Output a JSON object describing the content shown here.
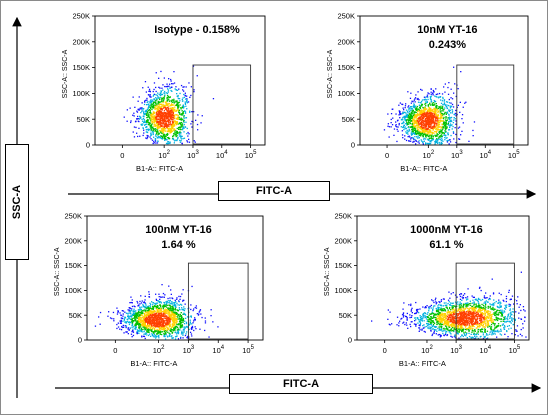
{
  "axis_labels": {
    "y_outer": "SSC-A",
    "x_outer_top": "FITC-A",
    "x_outer_bottom": "FITC-A"
  },
  "colors": {
    "density": [
      "#1010ff",
      "#00b0e0",
      "#00c000",
      "#ffd000",
      "#ff4000"
    ],
    "gate": "#333333",
    "axis": "#000000"
  },
  "chart_data": [
    {
      "type": "scatter",
      "title": "Isotype - 0.158%",
      "title_lines": [
        "Isotype - 0.158%"
      ],
      "xlabel": "B1-A:: FITC-A",
      "ylabel": "SSC-A:: SSC-A",
      "x_scale": "log",
      "y_ticks": [
        "0",
        "50K",
        "100K",
        "150K",
        "200K",
        "250K"
      ],
      "x_ticks": [
        "0",
        "10^2",
        "10^3",
        "10^4",
        "10^5"
      ],
      "ylim": [
        0,
        250000
      ],
      "gate": {
        "x_min_decade": 3.0,
        "x_max_decade": 5.0,
        "y_min": 0,
        "y_max": 155000,
        "percent": 0.158
      },
      "population": {
        "center_decade": 2.0,
        "center_y": 55000,
        "spread_decade": 0.45,
        "spread_y": 28000,
        "count": 1400
      }
    },
    {
      "type": "scatter",
      "title": "10nM YT-16 0.243%",
      "title_lines": [
        "10nM YT-16",
        "0.243%"
      ],
      "xlabel": "B1-A:: FITC-A",
      "ylabel": "SSC-A:: SSC-A",
      "x_scale": "log",
      "y_ticks": [
        "0",
        "50K",
        "100K",
        "150K",
        "200K",
        "250K"
      ],
      "x_ticks": [
        "0",
        "10^2",
        "10^3",
        "10^4",
        "10^5"
      ],
      "ylim": [
        0,
        250000
      ],
      "gate": {
        "x_min_decade": 3.0,
        "x_max_decade": 5.0,
        "y_min": 0,
        "y_max": 155000,
        "percent": 0.243
      },
      "population": {
        "center_decade": 1.95,
        "center_y": 48000,
        "spread_decade": 0.5,
        "spread_y": 24000,
        "count": 1500
      }
    },
    {
      "type": "scatter",
      "title": "100nM YT-16 1.64 %",
      "title_lines": [
        "100nM YT-16",
        "1.64 %"
      ],
      "xlabel": "B1-A:: FITC-A",
      "ylabel": "SSC-A:: SSC-A",
      "x_scale": "log",
      "y_ticks": [
        "0",
        "50K",
        "100K",
        "150K",
        "200K",
        "250K"
      ],
      "x_ticks": [
        "0",
        "10^2",
        "10^3",
        "10^4",
        "10^5"
      ],
      "ylim": [
        0,
        250000
      ],
      "gate": {
        "x_min_decade": 3.0,
        "x_max_decade": 5.0,
        "y_min": 0,
        "y_max": 155000,
        "percent": 1.64
      },
      "population": {
        "center_decade": 1.95,
        "center_y": 42000,
        "spread_decade": 0.6,
        "spread_y": 20000,
        "count": 1700
      }
    },
    {
      "type": "scatter",
      "title": "1000nM YT-16 61.1 %",
      "title_lines": [
        "1000nM YT-16",
        "61.1 %"
      ],
      "xlabel": "B1-A:: FITC-A",
      "ylabel": "SSC-A:: SSC-A",
      "x_scale": "log",
      "y_ticks": [
        "0",
        "50K",
        "100K",
        "150K",
        "200K",
        "250K"
      ],
      "x_ticks": [
        "0",
        "10^2",
        "10^3",
        "10^4",
        "10^5"
      ],
      "ylim": [
        0,
        250000
      ],
      "gate": {
        "x_min_decade": 3.0,
        "x_max_decade": 5.0,
        "y_min": 0,
        "y_max": 155000,
        "percent": 61.1
      },
      "population": {
        "center_decade": 3.3,
        "center_y": 45000,
        "spread_decade": 0.9,
        "spread_y": 20000,
        "count": 1900
      }
    }
  ]
}
